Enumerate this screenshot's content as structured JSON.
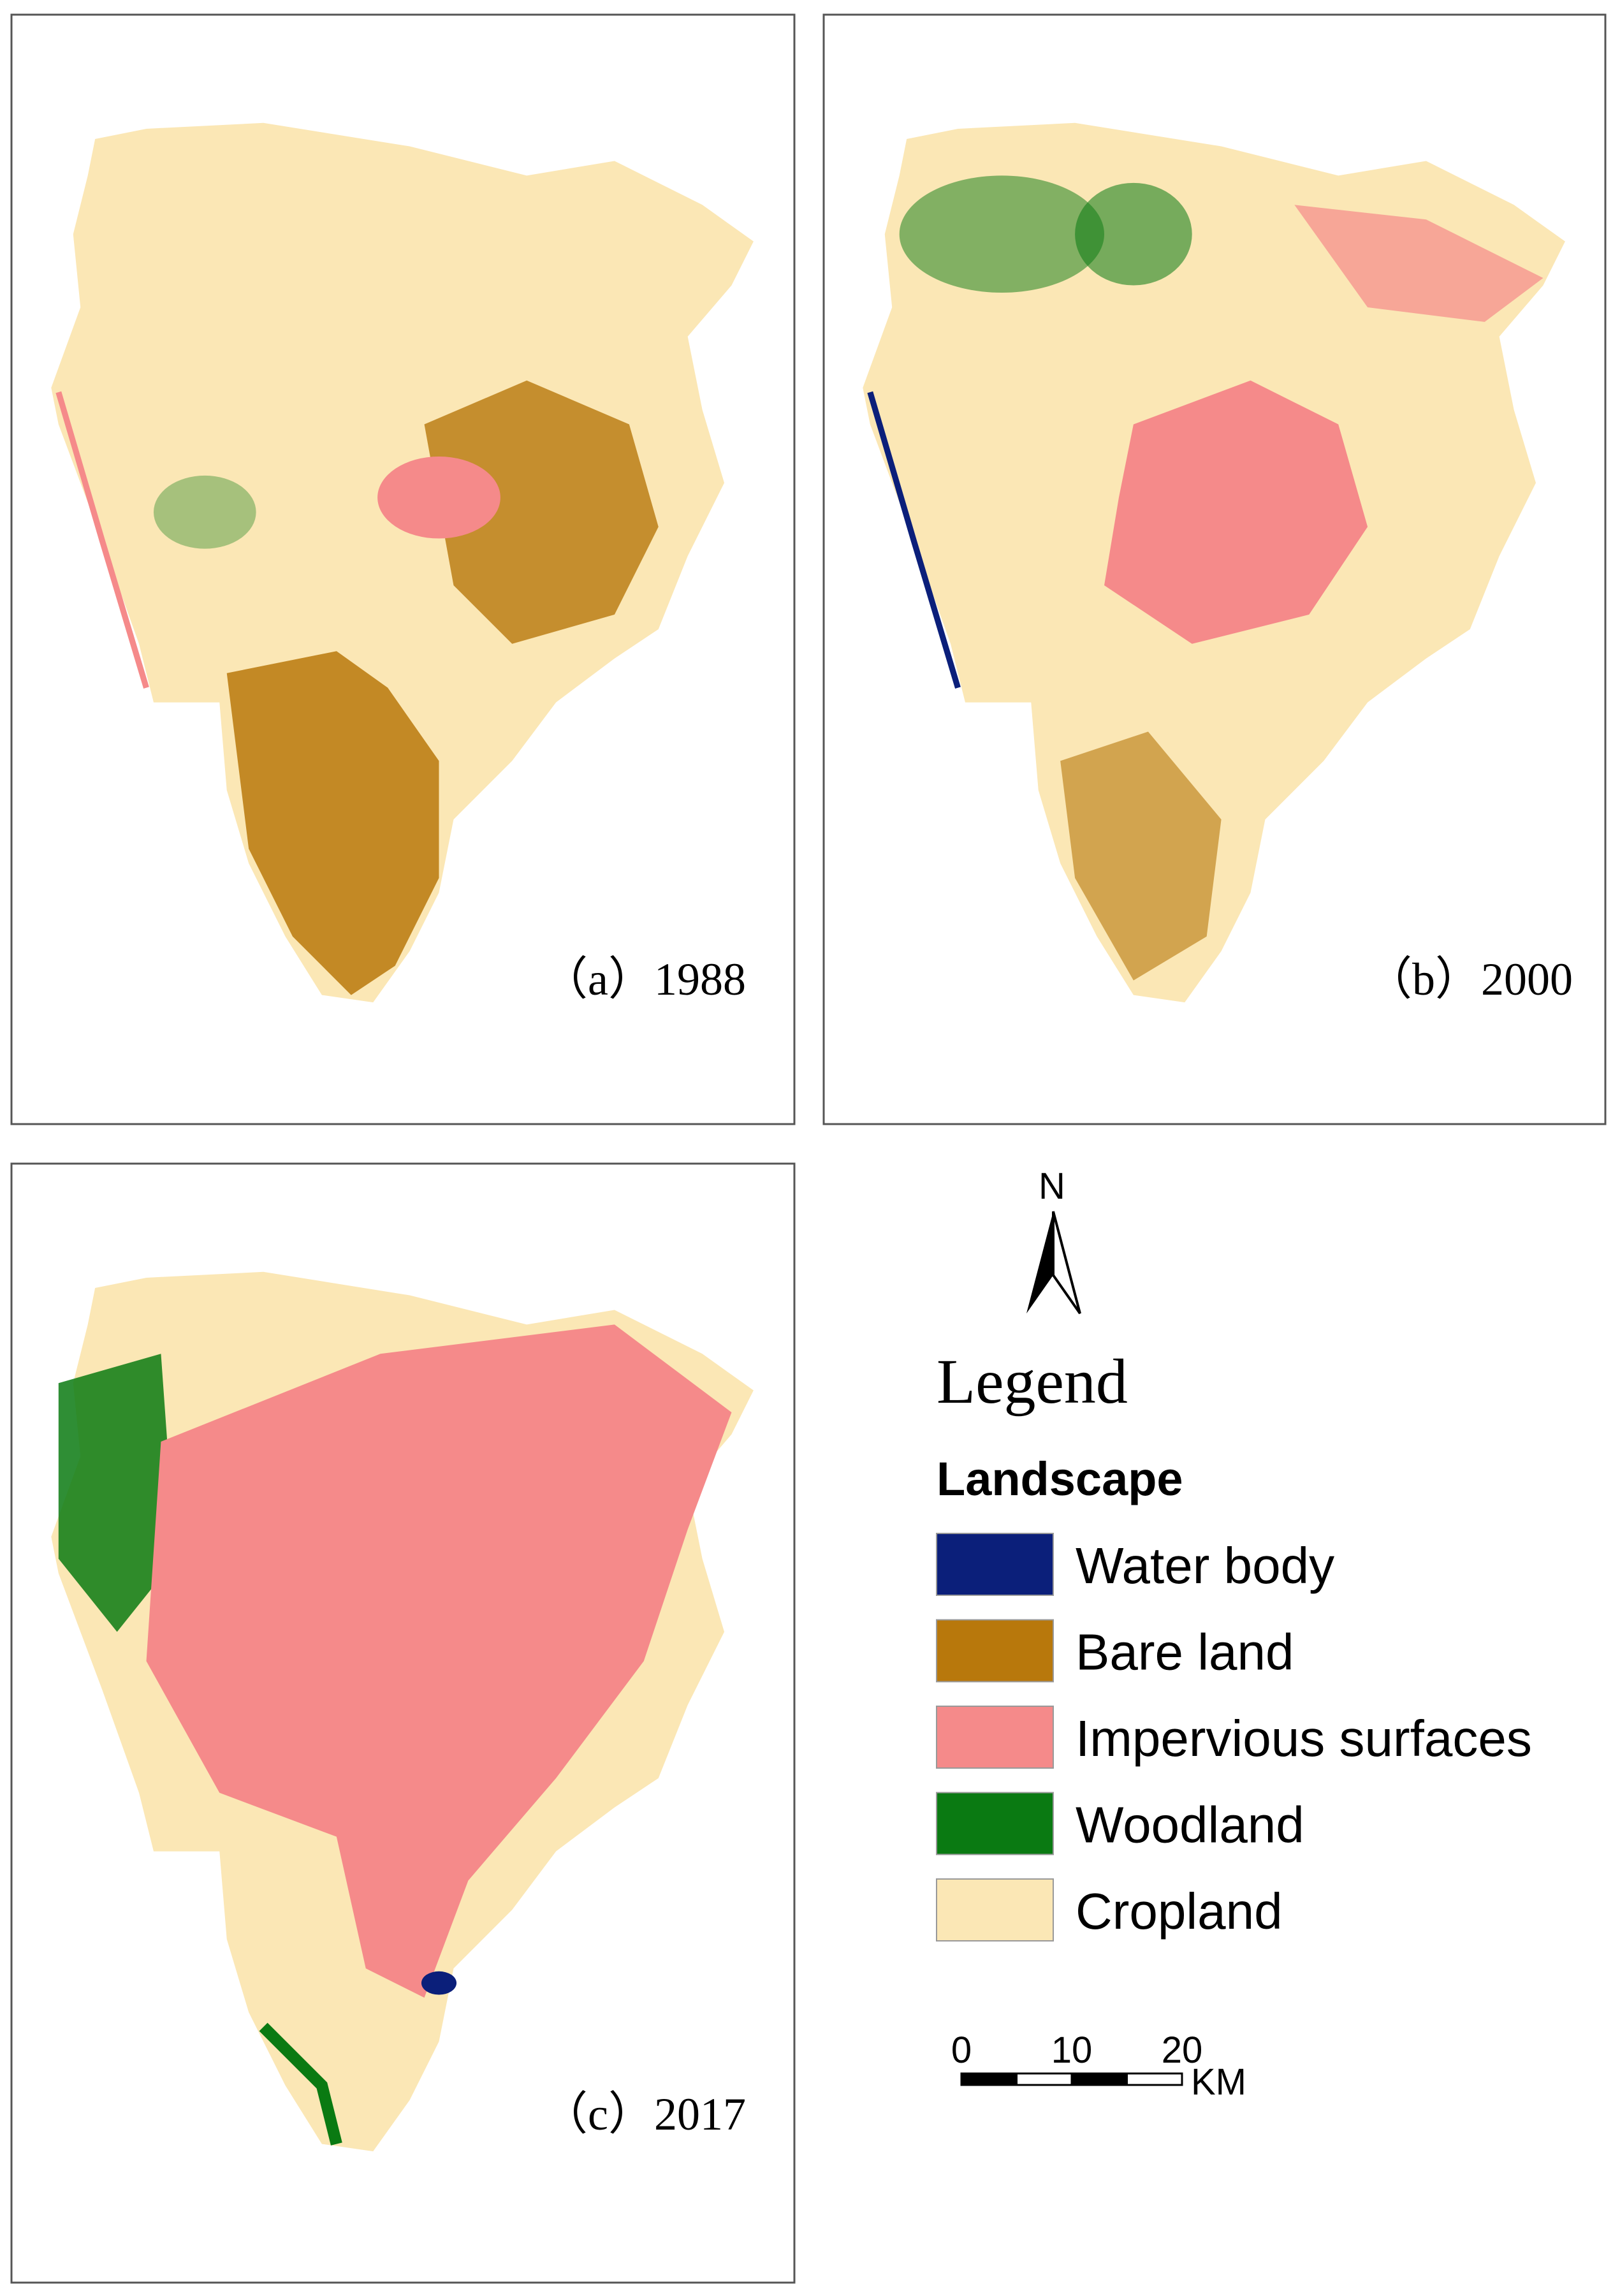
{
  "panels": [
    {
      "label": "（a）1988"
    },
    {
      "label": "（b）2000"
    },
    {
      "label": "（c）2017"
    }
  ],
  "north_arrow": "N",
  "legend": {
    "title": "Legend",
    "subtitle": "Landscape",
    "items": [
      {
        "name": "Water body",
        "color": "#0b1f7a"
      },
      {
        "name": "Bare land",
        "color": "#b8780c"
      },
      {
        "name": "Impervious surfaces",
        "color": "#f58a8a"
      },
      {
        "name": "Woodland",
        "color": "#0a7a12"
      },
      {
        "name": "Cropland",
        "color": "#fbe7b5"
      }
    ]
  },
  "scale_bar": {
    "ticks": [
      0,
      10,
      20
    ],
    "unit": "KM"
  }
}
